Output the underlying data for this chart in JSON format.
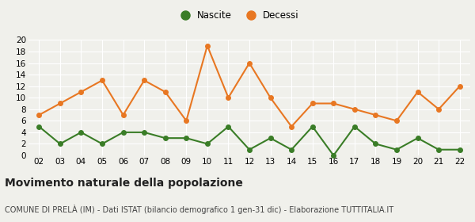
{
  "years": [
    "02",
    "03",
    "04",
    "05",
    "06",
    "07",
    "08",
    "09",
    "10",
    "11",
    "12",
    "13",
    "14",
    "15",
    "16",
    "17",
    "18",
    "19",
    "20",
    "21",
    "22"
  ],
  "nascite": [
    5,
    2,
    4,
    2,
    4,
    4,
    3,
    3,
    2,
    5,
    1,
    3,
    1,
    5,
    0,
    5,
    2,
    1,
    3,
    1,
    1
  ],
  "decessi": [
    7,
    9,
    11,
    13,
    7,
    13,
    11,
    6,
    19,
    10,
    16,
    10,
    5,
    9,
    9,
    8,
    7,
    6,
    11,
    8,
    12
  ],
  "nascite_color": "#3a7d27",
  "decessi_color": "#e87722",
  "background_color": "#f0f0eb",
  "grid_color": "#ffffff",
  "ylim": [
    0,
    20
  ],
  "yticks": [
    0,
    2,
    4,
    6,
    8,
    10,
    12,
    14,
    16,
    18,
    20
  ],
  "legend_label_nascite": "Nascite",
  "legend_label_decessi": "Decessi",
  "title": "Movimento naturale della popolazione",
  "subtitle": "COMUNE DI PRELÀ (IM) - Dati ISTAT (bilancio demografico 1 gen-31 dic) - Elaborazione TUTTITALIA.IT",
  "title_fontsize": 10,
  "subtitle_fontsize": 7,
  "marker_size": 4,
  "line_width": 1.5
}
